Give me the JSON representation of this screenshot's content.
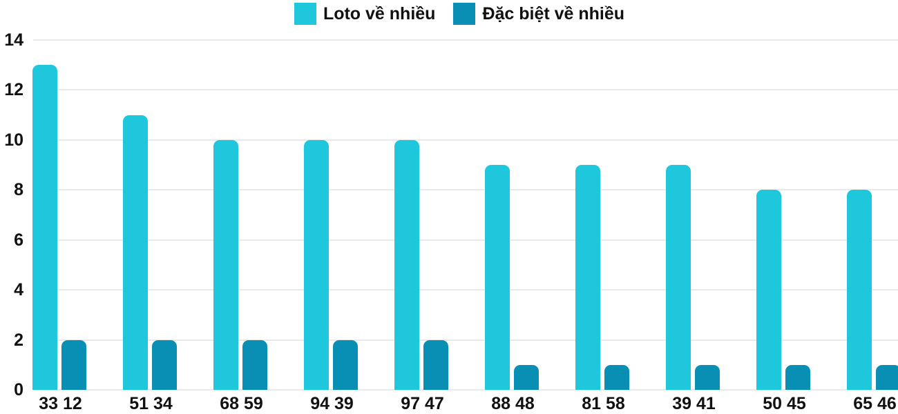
{
  "chart_data": {
    "type": "bar",
    "title": "",
    "xlabel": "",
    "ylabel": "",
    "categories": [
      "33 12",
      "51 34",
      "68 59",
      "94 39",
      "97 47",
      "88 48",
      "81 58",
      "39 41",
      "50 45",
      "65 46"
    ],
    "series": [
      {
        "name": "Loto về nhiều",
        "color": "#1ec7db",
        "values": [
          13,
          11,
          10,
          10,
          10,
          9,
          9,
          9,
          8,
          8
        ]
      },
      {
        "name": "Đặc biệt về nhiều",
        "color": "#0a8fb4",
        "values": [
          2,
          2,
          2,
          2,
          2,
          1,
          1,
          1,
          1,
          1
        ]
      }
    ],
    "ylim": [
      0,
      14
    ],
    "yticks": [
      0,
      2,
      4,
      6,
      8,
      10,
      12,
      14
    ],
    "grid": true,
    "legend_position": "top"
  },
  "colors": {
    "series1": "#1ec7db",
    "series2": "#0a8fb4",
    "gridline": "#e9e9e9",
    "text": "#111111",
    "background": "#ffffff"
  }
}
